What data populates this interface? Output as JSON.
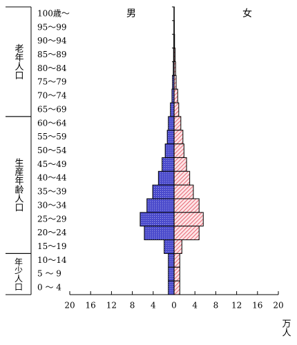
{
  "chart_data": {
    "type": "population-pyramid",
    "left_label": "男",
    "right_label": "女",
    "x_unit": "万人",
    "categories": [
      "100歳～",
      "95～99",
      "90～94",
      "85～89",
      "80～84",
      "75～79",
      "70～74",
      "65～69",
      "60～64",
      "55～59",
      "50～54",
      "45～49",
      "40～44",
      "35～39",
      "30～34",
      "25～29",
      "20～24",
      "15～19",
      "10～14",
      "5 ～ 9",
      "0 ～ 4"
    ],
    "groups": [
      {
        "label": "老年人口",
        "from": 0,
        "to": 7
      },
      {
        "label": "生産年齢人口",
        "from": 8,
        "to": 17
      },
      {
        "label": "年少人口",
        "from": 18,
        "to": 20
      }
    ],
    "series": [
      {
        "name": "男",
        "side": "left",
        "color": "#4b4bcc",
        "values": [
          0.02,
          0.03,
          0.05,
          0.1,
          0.15,
          0.3,
          0.4,
          0.7,
          1.1,
          1.3,
          1.7,
          2.3,
          3.0,
          4.1,
          5.2,
          6.5,
          5.7,
          1.9,
          1.1,
          1.1,
          1.1
        ]
      },
      {
        "name": "女",
        "side": "right",
        "color": "#e04858",
        "values": [
          0.04,
          0.06,
          0.1,
          0.2,
          0.3,
          0.4,
          0.7,
          0.9,
          1.3,
          1.7,
          1.9,
          2.4,
          3.0,
          3.7,
          4.8,
          5.6,
          4.8,
          1.5,
          1.1,
          1.1,
          1.1
        ]
      }
    ],
    "xlim": [
      -20,
      20
    ],
    "xticks": [
      {
        "value": -20,
        "label": "20"
      },
      {
        "value": -16,
        "label": "16"
      },
      {
        "value": -12,
        "label": "12"
      },
      {
        "value": -8,
        "label": "8"
      },
      {
        "value": -4,
        "label": "4"
      },
      0,
      4,
      8,
      12,
      16,
      20
    ]
  }
}
